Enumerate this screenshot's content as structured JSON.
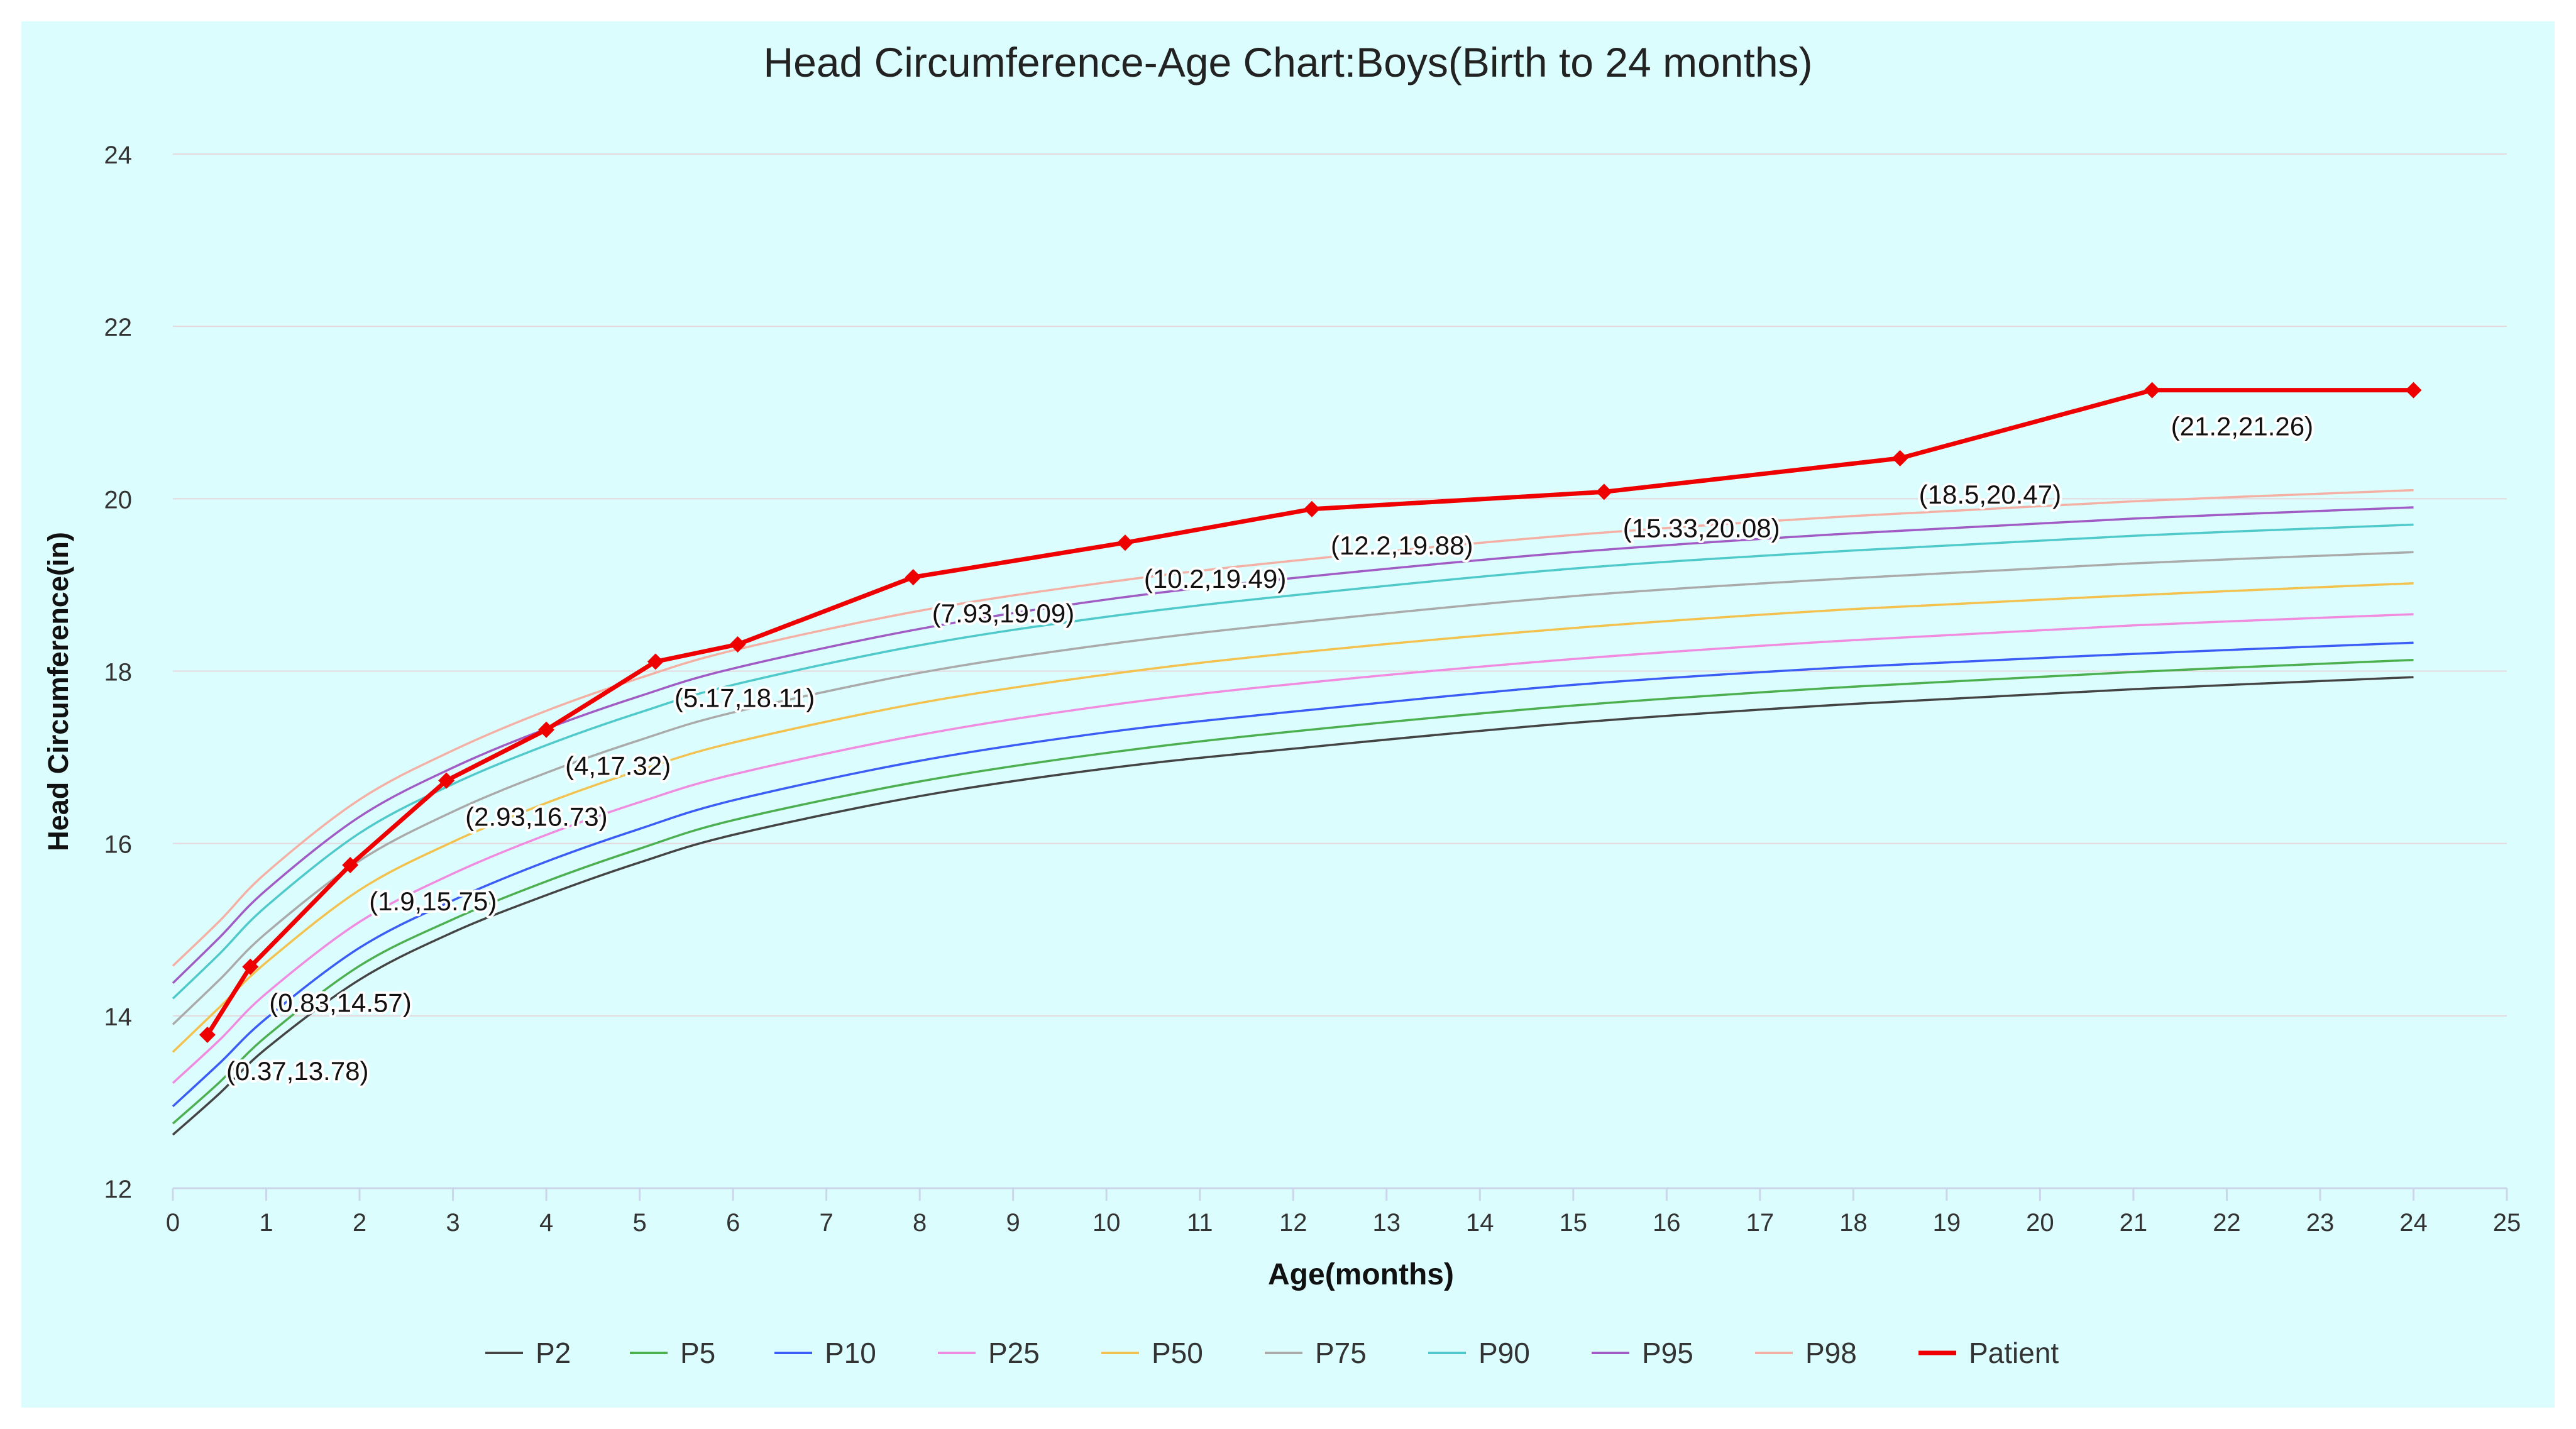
{
  "chart_data": {
    "type": "line",
    "title": "Head Circumference-Age Chart:Boys(Birth to 24 months)",
    "xlabel": "Age(months)",
    "ylabel": "Head Circumference(in)",
    "xlim": [
      0,
      25
    ],
    "ylim": [
      12,
      24
    ],
    "x_ticks": [
      0,
      1,
      2,
      3,
      4,
      5,
      6,
      7,
      8,
      9,
      10,
      11,
      12,
      13,
      14,
      15,
      16,
      17,
      18,
      19,
      20,
      21,
      22,
      23,
      24,
      25
    ],
    "y_ticks": [
      12,
      14,
      16,
      18,
      20,
      22,
      24
    ],
    "grid": "horizontal",
    "legend_position": "bottom",
    "series": [
      {
        "name": "P2",
        "color": "#444444",
        "x": [
          0,
          0.5,
          1,
          2,
          3,
          4,
          5,
          6,
          8,
          10,
          12,
          15,
          18,
          21,
          24
        ],
        "y": [
          12.62,
          13.1,
          13.62,
          14.42,
          14.97,
          15.4,
          15.78,
          16.1,
          16.55,
          16.87,
          17.1,
          17.4,
          17.62,
          17.79,
          17.93
        ]
      },
      {
        "name": "P5",
        "color": "#4caf50",
        "x": [
          0,
          0.5,
          1,
          2,
          3,
          4,
          5,
          6,
          8,
          10,
          12,
          15,
          18,
          21,
          24
        ],
        "y": [
          12.75,
          13.23,
          13.76,
          14.58,
          15.12,
          15.56,
          15.94,
          16.27,
          16.72,
          17.05,
          17.3,
          17.6,
          17.82,
          17.99,
          18.13
        ]
      },
      {
        "name": "P10",
        "color": "#3b5cf5",
        "x": [
          0,
          0.5,
          1,
          2,
          3,
          4,
          5,
          6,
          8,
          10,
          12,
          15,
          18,
          21,
          24
        ],
        "y": [
          12.95,
          13.45,
          13.97,
          14.79,
          15.34,
          15.79,
          16.17,
          16.5,
          16.96,
          17.29,
          17.53,
          17.84,
          18.05,
          18.2,
          18.33
        ]
      },
      {
        "name": "P25",
        "color": "#f08ce0",
        "x": [
          0,
          0.5,
          1,
          2,
          3,
          4,
          5,
          6,
          8,
          10,
          12,
          15,
          18,
          21,
          24
        ],
        "y": [
          13.22,
          13.72,
          14.26,
          15.09,
          15.65,
          16.1,
          16.48,
          16.8,
          17.26,
          17.6,
          17.85,
          18.14,
          18.36,
          18.53,
          18.66
        ]
      },
      {
        "name": "P50",
        "color": "#f2c14e",
        "x": [
          0,
          0.5,
          1,
          2,
          3,
          4,
          5,
          6,
          8,
          10,
          12,
          15,
          18,
          21,
          24
        ],
        "y": [
          13.58,
          14.1,
          14.62,
          15.46,
          16.02,
          16.47,
          16.85,
          17.17,
          17.63,
          17.96,
          18.21,
          18.5,
          18.72,
          18.88,
          19.02
        ]
      },
      {
        "name": "P75",
        "color": "#aaaaaa",
        "x": [
          0,
          0.5,
          1,
          2,
          3,
          4,
          5,
          6,
          8,
          10,
          12,
          15,
          18,
          21,
          24
        ],
        "y": [
          13.9,
          14.42,
          14.96,
          15.8,
          16.37,
          16.82,
          17.2,
          17.52,
          17.98,
          18.31,
          18.56,
          18.87,
          19.08,
          19.25,
          19.38
        ]
      },
      {
        "name": "P90",
        "color": "#4fc9c9",
        "x": [
          0,
          0.5,
          1,
          2,
          3,
          4,
          5,
          6,
          8,
          10,
          12,
          15,
          18,
          21,
          24
        ],
        "y": [
          14.2,
          14.72,
          15.27,
          16.12,
          16.69,
          17.14,
          17.52,
          17.84,
          18.3,
          18.63,
          18.88,
          19.19,
          19.4,
          19.57,
          19.7
        ]
      },
      {
        "name": "P95",
        "color": "#a05cc4",
        "x": [
          0,
          0.5,
          1,
          2,
          3,
          4,
          5,
          6,
          8,
          10,
          12,
          15,
          18,
          21,
          24
        ],
        "y": [
          14.38,
          14.91,
          15.46,
          16.31,
          16.88,
          17.33,
          17.71,
          18.03,
          18.49,
          18.83,
          19.08,
          19.38,
          19.6,
          19.77,
          19.9
        ]
      },
      {
        "name": "P98",
        "color": "#f4b0a4",
        "x": [
          0,
          0.5,
          1,
          2,
          3,
          4,
          5,
          6,
          8,
          10,
          12,
          15,
          18,
          21,
          24
        ],
        "y": [
          14.58,
          15.1,
          15.66,
          16.51,
          17.08,
          17.54,
          17.92,
          18.24,
          18.7,
          19.03,
          19.28,
          19.58,
          19.8,
          19.97,
          20.1
        ]
      },
      {
        "name": "Patient",
        "color": "#ee0000",
        "x": [
          0.37,
          0.83,
          1.9,
          2.93,
          4,
          5.17,
          6.05,
          7.93,
          10.2,
          12.2,
          15.33,
          18.5,
          21.2,
          24
        ],
        "y": [
          13.78,
          14.57,
          15.75,
          16.73,
          17.32,
          18.11,
          18.31,
          19.09,
          19.49,
          19.88,
          20.08,
          20.47,
          21.26,
          21.26
        ]
      }
    ],
    "annotations": [
      {
        "text": "(0.37,13.78)",
        "x": 0.37,
        "y": 13.78
      },
      {
        "text": "(0.83,14.57)",
        "x": 0.83,
        "y": 14.57
      },
      {
        "text": "(1.9,15.75)",
        "x": 1.9,
        "y": 15.75
      },
      {
        "text": "(2.93,16.73)",
        "x": 2.93,
        "y": 16.73
      },
      {
        "text": "(4,17.32)",
        "x": 4,
        "y": 17.32
      },
      {
        "text": "(5.17,18.11)",
        "x": 5.17,
        "y": 18.11
      },
      {
        "text": "(7.93,19.09)",
        "x": 7.93,
        "y": 19.09
      },
      {
        "text": "(10.2,19.49)",
        "x": 10.2,
        "y": 19.49
      },
      {
        "text": "(12.2,19.88)",
        "x": 12.2,
        "y": 19.88
      },
      {
        "text": "(15.33,20.08)",
        "x": 15.33,
        "y": 20.08
      },
      {
        "text": "(18.5,20.47)",
        "x": 18.5,
        "y": 20.47
      },
      {
        "text": "(21.2,21.26)",
        "x": 21.2,
        "y": 21.26
      }
    ]
  }
}
